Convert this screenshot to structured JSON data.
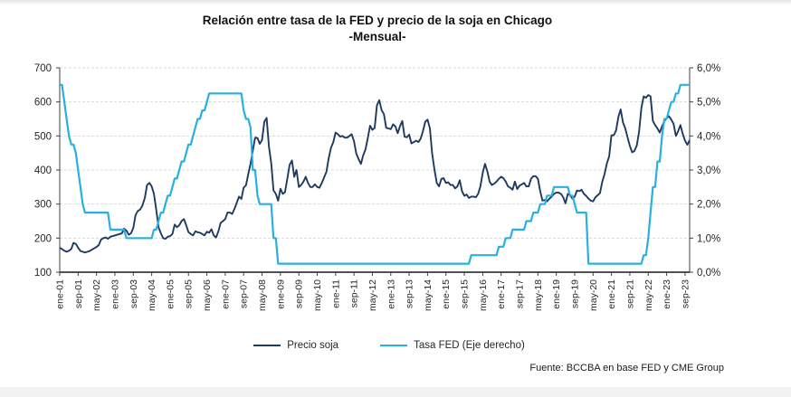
{
  "title": {
    "line1": "Relación entre tasa de la FED y precio de la soja en Chicago",
    "line2": "-Mensual-"
  },
  "legend": {
    "items": [
      {
        "label": "Precio soja",
        "color": "#1f3a60"
      },
      {
        "label": "Tasa FED (Eje derecho)",
        "color": "#2aafe3"
      }
    ]
  },
  "source_note": "Fuente: BCCBA en base FED y CME Group",
  "chart_data": {
    "type": "line",
    "title": "Relación entre tasa de la FED y precio de la soja en Chicago -Mensual-",
    "x_unit": "month",
    "x_start": "ene-01",
    "x_end": "nov-23",
    "x_tick_step_months": 8,
    "x_tick_labels": [
      "ene-01",
      "sep-01",
      "may-02",
      "ene-03",
      "sep-03",
      "may-04",
      "ene-05",
      "sep-05",
      "may-06",
      "ene-07",
      "sep-07",
      "may-08",
      "ene-09",
      "sep-09",
      "may-10",
      "ene-11",
      "sep-11",
      "may-12",
      "ene-13",
      "sep-13",
      "may-14",
      "ene-15",
      "sep-15",
      "may-16",
      "ene-17",
      "sep-17",
      "may-18",
      "ene-19",
      "sep-19",
      "may-20",
      "ene-21",
      "sep-21",
      "may-22",
      "ene-23",
      "sep-23"
    ],
    "left_axis": {
      "min": 100,
      "max": 700,
      "step": 100,
      "tick_labels": [
        "100",
        "200",
        "300",
        "400",
        "500",
        "600",
        "700"
      ]
    },
    "right_axis": {
      "min": 0,
      "max": 6,
      "step": 1,
      "tick_labels": [
        "0,0%",
        "1,0%",
        "2,0%",
        "3,0%",
        "4,0%",
        "5,0%",
        "6,0%"
      ]
    },
    "grid": "horizontal-dashed",
    "legend_position": "bottom-center",
    "series": [
      {
        "name": "Precio soja",
        "axis": "left",
        "color": "#1f3a60",
        "values": [
          172,
          168,
          163,
          160,
          163,
          168,
          186,
          183,
          172,
          162,
          160,
          158,
          160,
          162,
          166,
          170,
          174,
          180,
          196,
          200,
          202,
          198,
          204,
          206,
          208,
          210,
          212,
          214,
          228,
          222,
          210,
          214,
          230,
          268,
          280,
          284,
          296,
          318,
          356,
          362,
          352,
          330,
          282,
          232,
          214,
          200,
          198,
          204,
          206,
          212,
          240,
          232,
          238,
          250,
          256,
          238,
          218,
          212,
          208,
          220,
          217,
          216,
          212,
          208,
          219,
          216,
          226,
          208,
          202,
          220,
          245,
          250,
          256,
          275,
          275,
          271,
          286,
          304,
          322,
          315,
          348,
          355,
          388,
          418,
          458,
          495,
          494,
          477,
          488,
          542,
          553,
          468,
          420,
          340,
          330,
          310,
          345,
          330,
          335,
          375,
          415,
          428,
          380,
          400,
          350,
          356,
          366,
          380,
          362,
          350,
          350,
          358,
          350,
          348,
          362,
          378,
          395,
          435,
          465,
          482,
          510,
          505,
          498,
          500,
          495,
          495,
          500,
          505,
          485,
          448,
          432,
          418,
          443,
          460,
          494,
          530,
          518,
          524,
          590,
          605,
          576,
          564,
          524,
          522,
          520,
          534,
          528,
          508,
          528,
          544,
          498,
          496,
          504,
          478,
          482,
          486,
          482,
          492,
          514,
          542,
          548,
          522,
          448,
          402,
          362,
          352,
          374,
          376,
          362,
          364,
          356,
          356,
          346,
          352,
          370,
          338,
          324,
          328,
          318,
          322,
          322,
          320,
          330,
          352,
          392,
          418,
          396,
          366,
          356,
          360,
          366,
          374,
          380,
          376,
          366,
          352,
          348,
          342,
          366,
          344,
          354,
          358,
          362,
          352,
          352,
          374,
          382,
          382,
          374,
          338,
          310,
          312,
          308,
          316,
          322,
          330,
          334,
          334,
          330,
          320,
          302,
          330,
          326,
          316,
          322,
          340,
          338,
          342,
          330,
          324,
          316,
          310,
          308,
          320,
          326,
          332,
          366,
          388,
          420,
          440,
          502,
          502,
          516,
          556,
          578,
          540,
          522,
          496,
          470,
          452,
          456,
          472,
          512,
          582,
          616,
          612,
          620,
          616,
          544,
          532,
          522,
          510,
          528,
          544,
          552,
          558,
          548,
          536,
          500,
          514,
          532,
          506,
          486,
          474,
          488
        ]
      },
      {
        "name": "Tasa FED (Eje derecho)",
        "axis": "right",
        "color": "#2aafe3",
        "values": [
          5.5,
          5.5,
          5.0,
          4.5,
          4.0,
          3.75,
          3.75,
          3.5,
          3.0,
          2.5,
          2.0,
          1.75,
          1.75,
          1.75,
          1.75,
          1.75,
          1.75,
          1.75,
          1.75,
          1.75,
          1.75,
          1.75,
          1.25,
          1.25,
          1.25,
          1.25,
          1.25,
          1.25,
          1.25,
          1.0,
          1.0,
          1.0,
          1.0,
          1.0,
          1.0,
          1.0,
          1.0,
          1.0,
          1.0,
          1.0,
          1.0,
          1.25,
          1.25,
          1.5,
          1.75,
          1.75,
          2.0,
          2.25,
          2.25,
          2.5,
          2.75,
          2.75,
          3.0,
          3.25,
          3.25,
          3.5,
          3.75,
          3.75,
          4.0,
          4.25,
          4.5,
          4.5,
          4.75,
          4.75,
          5.0,
          5.25,
          5.25,
          5.25,
          5.25,
          5.25,
          5.25,
          5.25,
          5.25,
          5.25,
          5.25,
          5.25,
          5.25,
          5.25,
          5.25,
          5.25,
          4.75,
          4.5,
          4.5,
          4.25,
          3.0,
          3.0,
          2.25,
          2.0,
          2.0,
          2.0,
          2.0,
          2.0,
          2.0,
          1.0,
          1.0,
          0.25,
          0.25,
          0.25,
          0.25,
          0.25,
          0.25,
          0.25,
          0.25,
          0.25,
          0.25,
          0.25,
          0.25,
          0.25,
          0.25,
          0.25,
          0.25,
          0.25,
          0.25,
          0.25,
          0.25,
          0.25,
          0.25,
          0.25,
          0.25,
          0.25,
          0.25,
          0.25,
          0.25,
          0.25,
          0.25,
          0.25,
          0.25,
          0.25,
          0.25,
          0.25,
          0.25,
          0.25,
          0.25,
          0.25,
          0.25,
          0.25,
          0.25,
          0.25,
          0.25,
          0.25,
          0.25,
          0.25,
          0.25,
          0.25,
          0.25,
          0.25,
          0.25,
          0.25,
          0.25,
          0.25,
          0.25,
          0.25,
          0.25,
          0.25,
          0.25,
          0.25,
          0.25,
          0.25,
          0.25,
          0.25,
          0.25,
          0.25,
          0.25,
          0.25,
          0.25,
          0.25,
          0.25,
          0.25,
          0.25,
          0.25,
          0.25,
          0.25,
          0.25,
          0.25,
          0.25,
          0.25,
          0.25,
          0.25,
          0.25,
          0.5,
          0.5,
          0.5,
          0.5,
          0.5,
          0.5,
          0.5,
          0.5,
          0.5,
          0.5,
          0.5,
          0.5,
          0.75,
          0.75,
          0.75,
          1.0,
          1.0,
          1.0,
          1.25,
          1.25,
          1.25,
          1.25,
          1.25,
          1.25,
          1.5,
          1.5,
          1.5,
          1.75,
          1.75,
          1.75,
          2.0,
          2.0,
          2.0,
          2.25,
          2.25,
          2.25,
          2.5,
          2.5,
          2.5,
          2.5,
          2.5,
          2.5,
          2.5,
          2.25,
          2.25,
          2.0,
          1.75,
          1.75,
          1.75,
          1.75,
          1.75,
          0.25,
          0.25,
          0.25,
          0.25,
          0.25,
          0.25,
          0.25,
          0.25,
          0.25,
          0.25,
          0.25,
          0.25,
          0.25,
          0.25,
          0.25,
          0.25,
          0.25,
          0.25,
          0.25,
          0.25,
          0.25,
          0.25,
          0.25,
          0.25,
          0.5,
          0.5,
          1.0,
          1.75,
          2.5,
          2.5,
          3.25,
          3.25,
          4.0,
          4.5,
          4.5,
          4.75,
          5.0,
          5.0,
          5.25,
          5.25,
          5.5,
          5.5,
          5.5,
          5.5,
          5.5
        ]
      }
    ]
  }
}
